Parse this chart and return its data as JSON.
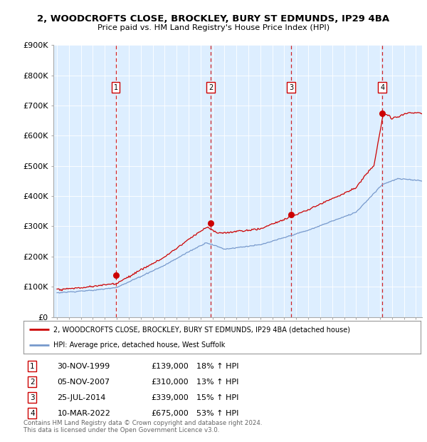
{
  "title1": "2, WOODCROFTS CLOSE, BROCKLEY, BURY ST EDMUNDS, IP29 4BA",
  "title2": "Price paid vs. HM Land Registry's House Price Index (HPI)",
  "xmin": 1994.7,
  "xmax": 2025.5,
  "ymin": 0,
  "ymax": 900000,
  "yticks": [
    0,
    100000,
    200000,
    300000,
    400000,
    500000,
    600000,
    700000,
    800000,
    900000
  ],
  "ytick_labels": [
    "£0",
    "£100K",
    "£200K",
    "£300K",
    "£400K",
    "£500K",
    "£600K",
    "£700K",
    "£800K",
    "£900K"
  ],
  "transactions": [
    {
      "num": 1,
      "date": "30-NOV-1999",
      "x": 1999.917,
      "price": 139000,
      "pct": "18%",
      "dir": "↑"
    },
    {
      "num": 2,
      "date": "05-NOV-2007",
      "x": 2007.846,
      "price": 310000,
      "pct": "13%",
      "dir": "↑"
    },
    {
      "num": 3,
      "date": "25-JUL-2014",
      "x": 2014.56,
      "price": 339000,
      "pct": "15%",
      "dir": "↑"
    },
    {
      "num": 4,
      "date": "10-MAR-2022",
      "x": 2022.192,
      "price": 675000,
      "pct": "53%",
      "dir": "↑"
    }
  ],
  "legend_line1": "2, WOODCROFTS CLOSE, BROCKLEY, BURY ST EDMUNDS, IP29 4BA (detached house)",
  "legend_line2": "HPI: Average price, detached house, West Suffolk",
  "footer1": "Contains HM Land Registry data © Crown copyright and database right 2024.",
  "footer2": "This data is licensed under the Open Government Licence v3.0.",
  "red_color": "#cc0000",
  "blue_color": "#7799cc",
  "bg_color": "#ddeeff",
  "plot_bg": "#ffffff",
  "marker_num_y": 760000
}
